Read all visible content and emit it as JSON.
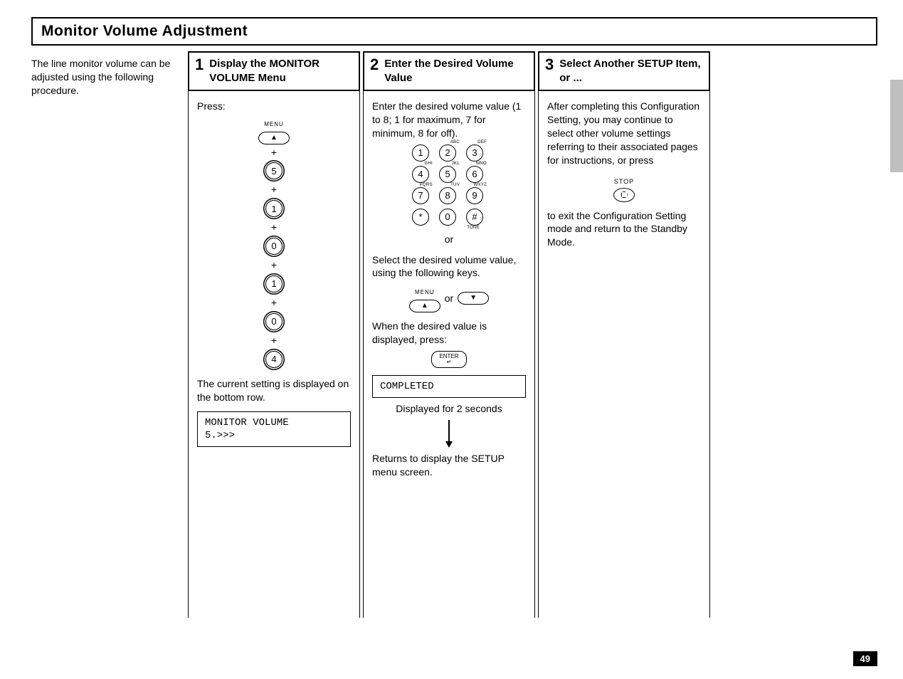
{
  "page": {
    "number": "49",
    "section_title": "Monitor Volume Adjustment",
    "intro": "The line monitor volume can be adjusted using the following procedure."
  },
  "step1": {
    "num": "1",
    "title": "Display the MONITOR VOLUME Menu",
    "press_label": "Press:",
    "menu_label": "MENU",
    "key_sequence": [
      "5",
      "1",
      "0",
      "1",
      "0",
      "4"
    ],
    "plus": "+",
    "note": "The current setting is displayed on the bottom row.",
    "lcd_line1": "MONITOR VOLUME",
    "lcd_line2": "5.>>>"
  },
  "step2": {
    "num": "2",
    "title": "Enter the Desired Volume Value",
    "instruction": "Enter the desired volume value (1 to 8; 1 for maximum, 7 for minimum, 8 for off).",
    "keypad": [
      {
        "k": "1",
        "sup": ""
      },
      {
        "k": "2",
        "sup": "ABC"
      },
      {
        "k": "3",
        "sup": "DEF"
      },
      {
        "k": "4",
        "sup": "GHI"
      },
      {
        "k": "5",
        "sup": "JKL"
      },
      {
        "k": "6",
        "sup": "MNO"
      },
      {
        "k": "7",
        "sup": "PQRS"
      },
      {
        "k": "8",
        "sup": "TUV"
      },
      {
        "k": "9",
        "sup": "WXYZ"
      },
      {
        "k": "*",
        "sup": ""
      },
      {
        "k": "0",
        "sup": ""
      },
      {
        "k": "#",
        "sup": "TONE"
      }
    ],
    "or": "or",
    "select_text": "Select the desired volume value, using the following keys.",
    "nav_or": "or",
    "menu_label": "MENU",
    "when_text": "When the desired value is displayed, press:",
    "enter_label": "ENTER↵",
    "completed": "COMPLETED",
    "displayed_note": "Displayed for 2 seconds",
    "returns_text": "Returns to display the SETUP menu screen."
  },
  "step3": {
    "num": "3",
    "title": "Select Another SETUP Item, or ...",
    "para1": "After completing this Configuration Setting, you may continue to select other volume settings referring to their associated pages for instructions, or press",
    "stop_label": "STOP",
    "para2": "to exit the Configuration Setting mode and return to the Standby Mode."
  }
}
